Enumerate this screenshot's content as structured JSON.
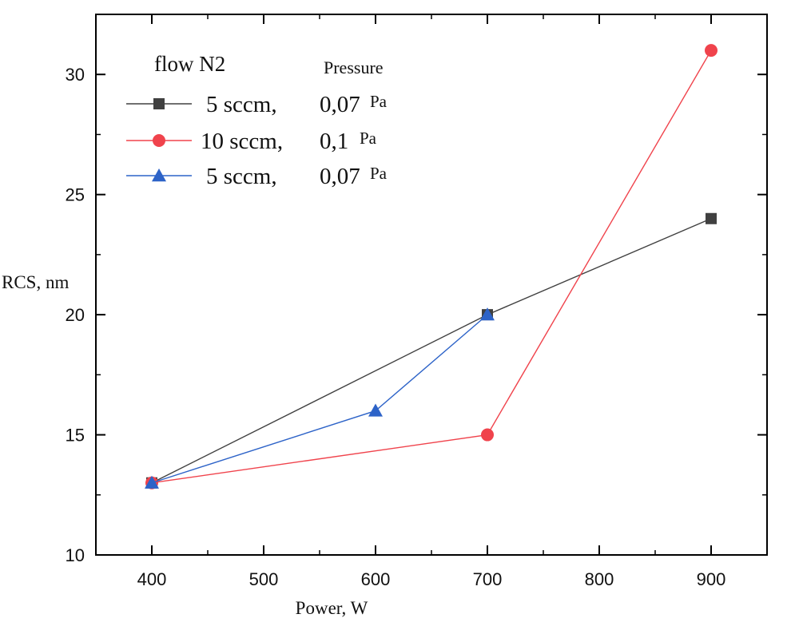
{
  "chart_data": {
    "type": "line",
    "xlabel": "Power, W",
    "ylabel": "RCS, nm",
    "xlim": [
      350,
      950
    ],
    "ylim": [
      10,
      32.5
    ],
    "x_ticks": [
      400,
      500,
      600,
      700,
      800,
      900
    ],
    "y_ticks": [
      10,
      15,
      20,
      25,
      30
    ],
    "grid": false,
    "legend": {
      "placement": "top-left",
      "title": "flow N2",
      "pressure_header": "Pressure"
    },
    "series": [
      {
        "flow": "5 sccm,",
        "pressure": "0,07",
        "unit": "Pa",
        "color": "#404040",
        "marker": "square",
        "x": [
          400,
          700,
          900
        ],
        "y": [
          13,
          20,
          24
        ]
      },
      {
        "flow": "10 sccm,",
        "pressure": "0,1",
        "unit": "Pa",
        "color": "#f0434c",
        "marker": "circle",
        "x": [
          400,
          700,
          900
        ],
        "y": [
          13,
          15,
          31
        ]
      },
      {
        "flow": "5 sccm,",
        "pressure": "0,07",
        "unit": "Pa",
        "color": "#2d63c8",
        "marker": "triangle",
        "x": [
          400,
          600,
          700
        ],
        "y": [
          13,
          16,
          20
        ]
      }
    ]
  }
}
